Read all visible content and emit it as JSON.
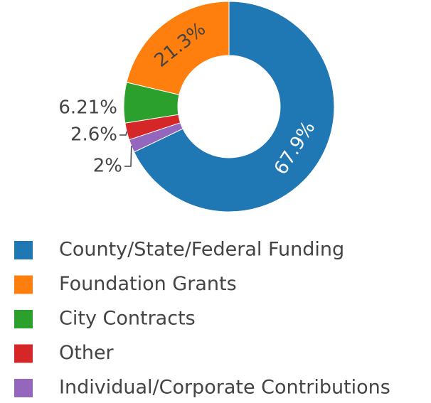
{
  "chart_data": {
    "type": "pie",
    "categories": [
      "County/State/Federal Funding",
      "Foundation Grants",
      "City Contracts",
      "Other",
      "Individual/Corporate Contributions"
    ],
    "values": [
      67.9,
      21.3,
      6.21,
      2.6,
      2
    ],
    "value_labels": [
      "67.9%",
      "21.3%",
      "6.21%",
      "2.6%",
      "2%"
    ],
    "colors": [
      "#1f77b4",
      "#ff7f0e",
      "#2ca02c",
      "#d62728",
      "#9467bd"
    ],
    "hole": true,
    "legend": "bottom-left"
  }
}
